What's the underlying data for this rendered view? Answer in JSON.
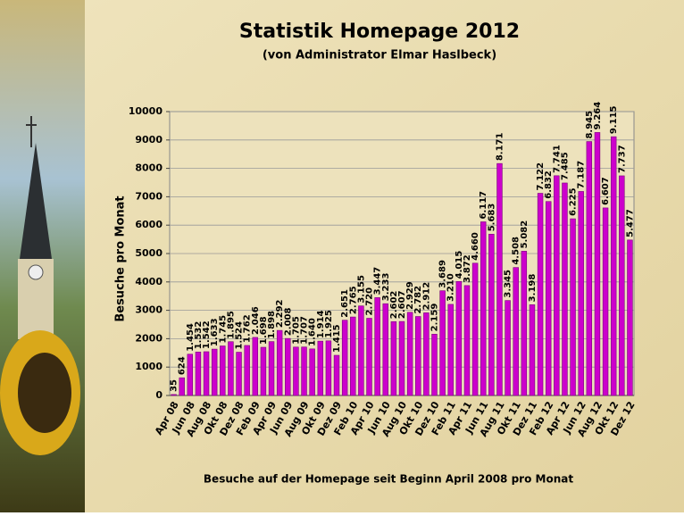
{
  "chart_data": {
    "type": "bar",
    "title": "Statistik Homepage 2012",
    "subtitle": "(von Administrator Elmar Haslbeck)",
    "y_label": "Besuche pro Monat",
    "x_label": "Besuche auf der Homepage seit Beginn April 2008 pro Monat",
    "color": "#cc00cc",
    "grid": true,
    "ylim": [
      0,
      10000
    ],
    "yticks": [
      0,
      1000,
      2000,
      3000,
      4000,
      5000,
      6000,
      7000,
      8000,
      9000,
      10000
    ],
    "categories": [
      "Apr 08",
      null,
      "Jun 08",
      null,
      "Aug 08",
      null,
      "Okt 08",
      null,
      "Dez 08",
      null,
      "Feb 09",
      null,
      "Apr 09",
      null,
      "Jun 09",
      null,
      "Aug 09",
      null,
      "Okt 09",
      null,
      "Dez 09",
      null,
      "Feb 10",
      null,
      "Apr 10",
      null,
      "Jun 10",
      null,
      "Aug 10",
      null,
      "Okt 10",
      null,
      "Dez 10",
      null,
      "Feb 11",
      null,
      "Apr 11",
      null,
      "Jun 11",
      null,
      "Aug 11",
      null,
      "Okt 11",
      null,
      "Dez 11",
      null,
      "Feb 12",
      null,
      "Apr 12",
      null,
      "Jun 12",
      null,
      "Aug 12",
      null,
      "Okt 12",
      null,
      "Dez 12"
    ],
    "values": [
      35,
      624,
      1454,
      1532,
      1542,
      1633,
      1745,
      1895,
      1524,
      1762,
      2046,
      1698,
      1898,
      2292,
      2008,
      1705,
      1707,
      1640,
      1914,
      1925,
      1415,
      2651,
      2765,
      3155,
      2720,
      3447,
      3233,
      2602,
      2607,
      2929,
      2782,
      2912,
      2159,
      3689,
      3210,
      4015,
      3872,
      4660,
      6117,
      5683,
      8171,
      3345,
      4508,
      5082,
      3198,
      7122,
      6832,
      7741,
      7485,
      6225,
      7187,
      8945,
      9264,
      6607,
      9115,
      7737,
      5477
    ],
    "value_labels": [
      "35",
      "624",
      "1.454",
      "1.532",
      "1.542",
      "1.633",
      "1.745",
      "1.895",
      "1.524",
      "1.762",
      "2.046",
      "1.698",
      "1.898",
      "2.292",
      "2.008",
      "1.705",
      "1.707",
      "1.640",
      "1.914",
      "1.925",
      "1.415",
      "2.651",
      "2.765",
      "3.155",
      "2.720",
      "3.447",
      "3.233",
      "2.602",
      "2.607",
      "2.929",
      "2.782",
      "2.912",
      "2.159",
      "3.689",
      "3.210",
      "4.015",
      "3.872",
      "4.660",
      "6.117",
      "5.683",
      "8.171",
      "3.345",
      "4.508",
      "5.082",
      "3.198",
      "7.122",
      "6.832",
      "7.741",
      "7.485",
      "6.225",
      "7.187",
      "8.945",
      "9.264",
      "6.607",
      "9.115",
      "7.737",
      "5.477"
    ]
  }
}
